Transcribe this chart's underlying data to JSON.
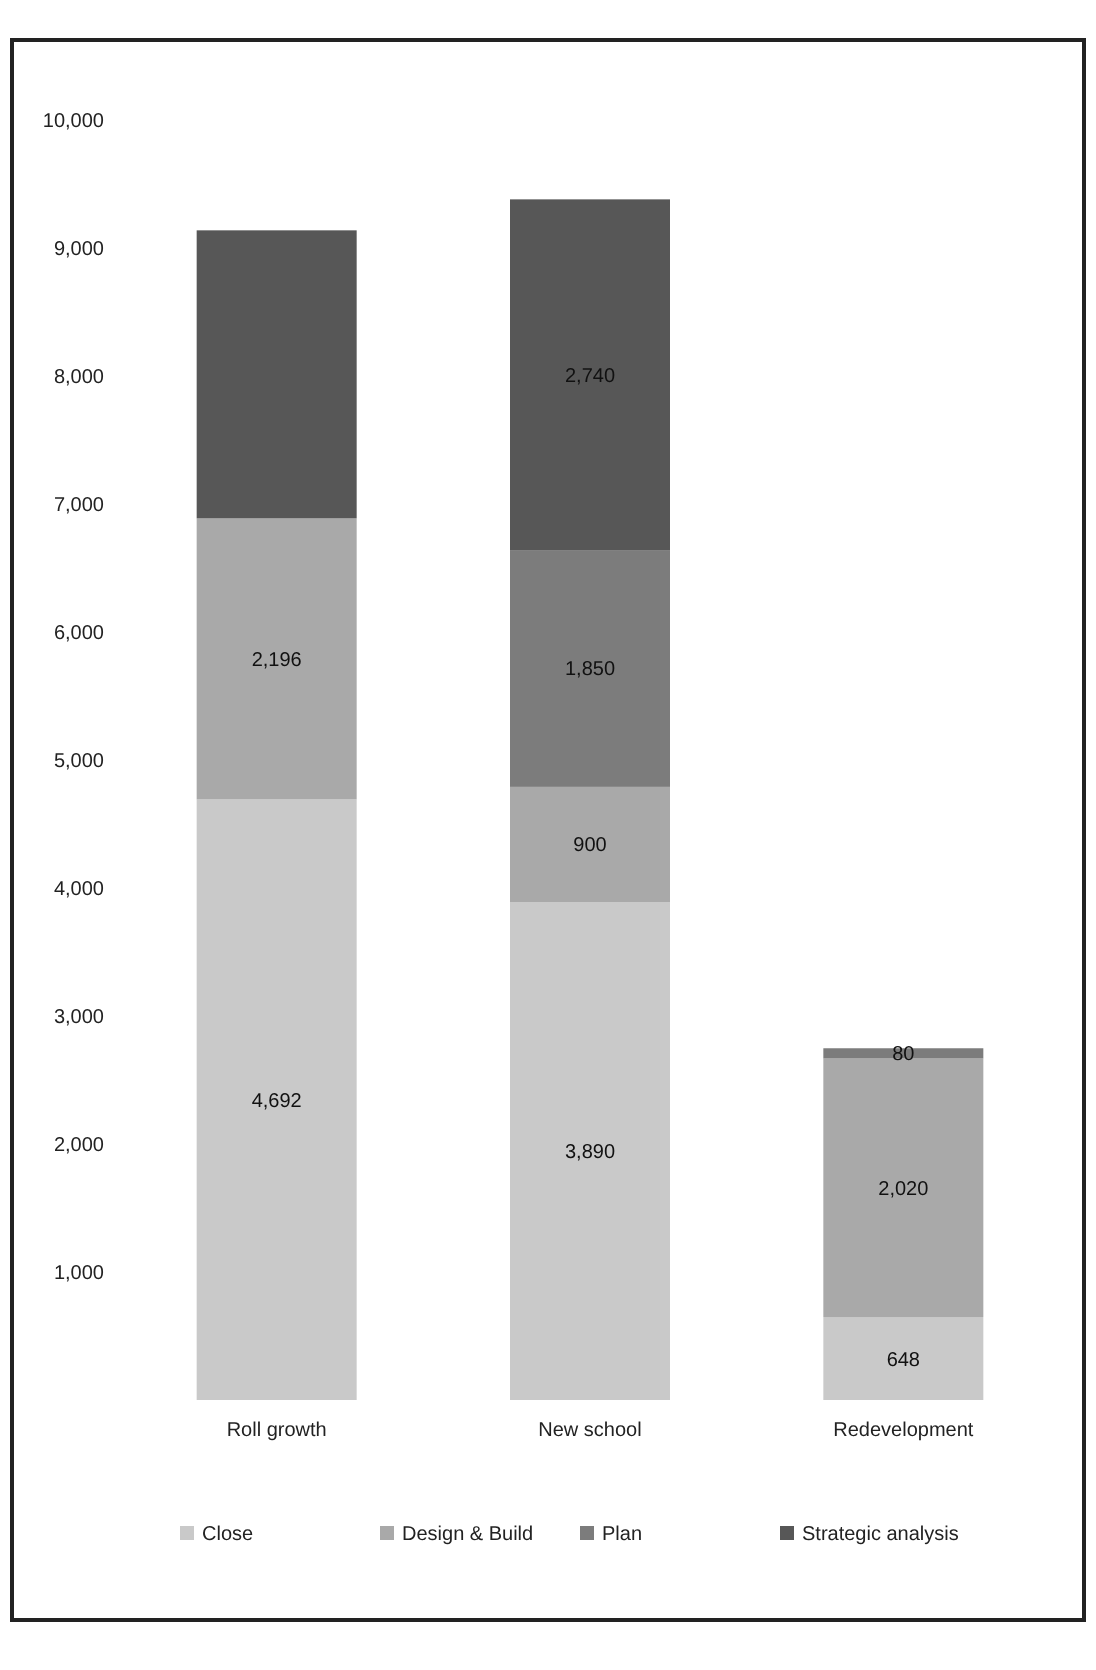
{
  "chart_data": {
    "type": "bar",
    "stacked": true,
    "categories": [
      "Roll growth",
      "New school",
      "Redevelopment"
    ],
    "series": [
      {
        "name": "Close",
        "color": "#c9c9c9",
        "values": [
          4692,
          3890,
          648
        ],
        "value_labels": [
          "4,692",
          "3,890",
          "648"
        ]
      },
      {
        "name": "Design & Build",
        "color": "#a9a9a9",
        "values": [
          2196,
          900,
          2020
        ],
        "value_labels": [
          "2,196",
          "900",
          "2,020"
        ]
      },
      {
        "name": "Plan",
        "color": "#7c7c7c",
        "values": [
          null,
          1850,
          80
        ],
        "value_labels": [
          null,
          "1,850",
          "80"
        ]
      },
      {
        "name": "Strategic analysis",
        "color": "#575757",
        "values": [
          2250,
          2740,
          null
        ],
        "value_labels": [
          null,
          "2,740",
          null
        ]
      }
    ],
    "ylim": [
      0,
      10000
    ],
    "yticks": [
      {
        "value": 1000,
        "label": "1,000"
      },
      {
        "value": 2000,
        "label": "2,000"
      },
      {
        "value": 3000,
        "label": "3,000"
      },
      {
        "value": 4000,
        "label": "4,000"
      },
      {
        "value": 5000,
        "label": "5,000"
      },
      {
        "value": 6000,
        "label": "6,000"
      },
      {
        "value": 7000,
        "label": "7,000"
      },
      {
        "value": 8000,
        "label": "8,000"
      },
      {
        "value": 9000,
        "label": "9,000"
      },
      {
        "value": 10000,
        "label": "10,000"
      }
    ],
    "legend": "bottom"
  }
}
